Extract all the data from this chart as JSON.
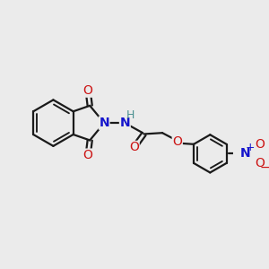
{
  "bg_color": "#ebebeb",
  "line_color": "#1a1a1a",
  "bond_lw": 1.6,
  "colors": {
    "N": "#1414cc",
    "O": "#cc1414",
    "H": "#4a9090",
    "plus": "#1414cc",
    "minus": "#cc1414"
  },
  "figsize": [
    3.0,
    3.0
  ],
  "dpi": 100
}
